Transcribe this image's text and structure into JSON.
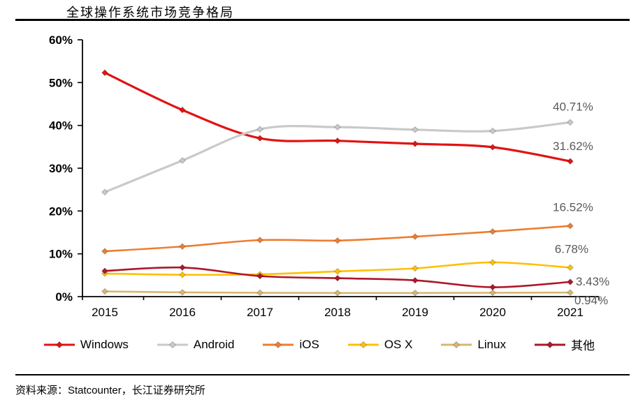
{
  "title": "全球操作系统市场竞争格局",
  "source": "资料来源：Statcounter，长江证券研究所",
  "y_axis": {
    "ticks": [
      "60%",
      "50%",
      "40%",
      "30%",
      "20%",
      "10%",
      "0%"
    ],
    "min": 0,
    "max": 60
  },
  "x_axis": {
    "categories": [
      "2015",
      "2016",
      "2017",
      "2018",
      "2019",
      "2020",
      "2021"
    ]
  },
  "chart_data": {
    "type": "line",
    "title": "全球操作系统市场竞争格局",
    "categories": [
      "2015",
      "2016",
      "2017",
      "2018",
      "2019",
      "2020",
      "2021"
    ],
    "ylim": [
      0,
      60
    ],
    "grid": false,
    "legend_position": "bottom",
    "label_color": "#595959",
    "series": [
      {
        "name": "Windows",
        "color": "#e21313",
        "values": [
          52.3,
          43.6,
          37.0,
          36.4,
          35.7,
          34.9,
          31.62
        ],
        "end_label": "31.62%"
      },
      {
        "name": "Android",
        "color": "#c9c9c9",
        "values": [
          24.4,
          31.8,
          39.1,
          39.6,
          39.0,
          38.7,
          40.71
        ],
        "end_label": "40.71%"
      },
      {
        "name": "iOS",
        "color": "#ed7d31",
        "values": [
          10.6,
          11.7,
          13.2,
          13.1,
          14.0,
          15.2,
          16.52
        ],
        "end_label": "16.52%"
      },
      {
        "name": "OS X",
        "color": "#ffc000",
        "values": [
          5.4,
          5.1,
          5.2,
          5.9,
          6.6,
          8.0,
          6.78
        ],
        "end_label": "6.78%"
      },
      {
        "name": "Linux",
        "color": "#d8b671",
        "values": [
          1.2,
          1.0,
          0.9,
          0.85,
          0.85,
          0.9,
          0.94
        ],
        "end_label": "0.94%"
      },
      {
        "name": "其他",
        "color": "#ae1729",
        "values": [
          6.0,
          6.8,
          4.8,
          4.3,
          3.8,
          2.2,
          3.43
        ],
        "end_label": "3.43%"
      }
    ]
  }
}
